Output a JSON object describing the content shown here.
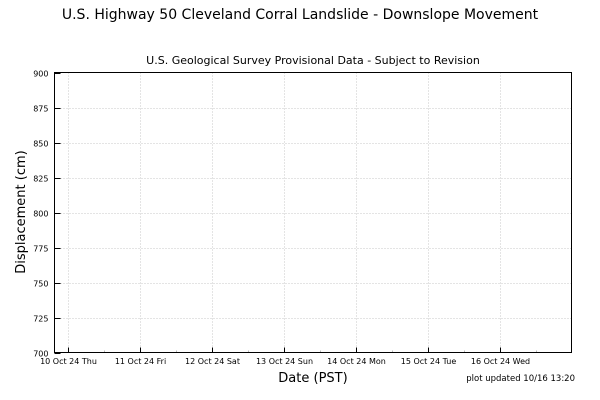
{
  "chart_data": {
    "type": "line",
    "title": "U.S. Highway 50 Cleveland Corral Landslide - Downslope Movement",
    "subtitle": "U.S. Geological Survey Provisional Data - Subject to Revision",
    "xlabel": "Date (PST)",
    "ylabel": "Displacement (cm)",
    "ylim": [
      700,
      900
    ],
    "yticks": [
      700,
      725,
      750,
      775,
      800,
      825,
      850,
      875,
      900
    ],
    "xlim": [
      "2024-10-09T19:30",
      "2024-10-16T24:00"
    ],
    "xticks": [
      {
        "date": "2024-10-10",
        "label": "10 Oct 24 Thu"
      },
      {
        "date": "2024-10-11",
        "label": "11 Oct 24 Fri"
      },
      {
        "date": "2024-10-12",
        "label": "12 Oct 24 Sat"
      },
      {
        "date": "2024-10-13",
        "label": "13 Oct 24 Sun"
      },
      {
        "date": "2024-10-14",
        "label": "14 Oct 24 Mon"
      },
      {
        "date": "2024-10-15",
        "label": "15 Oct 24 Tue"
      },
      {
        "date": "2024-10-16",
        "label": "16 Oct 24 Wed"
      }
    ],
    "grid": true,
    "series": [],
    "footnote": "plot updated 10/16 13:20"
  }
}
